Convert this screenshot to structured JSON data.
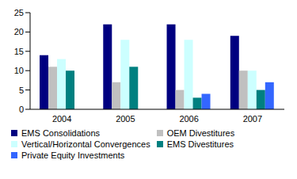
{
  "chart_data": {
    "type": "bar",
    "categories": [
      "2004",
      "2005",
      "2006",
      "2007"
    ],
    "series": [
      {
        "name": "EMS Consolidations",
        "color": "#000080",
        "values": [
          14,
          22,
          22,
          19
        ]
      },
      {
        "name": "OEM Divestitures",
        "color": "#c0c0c0",
        "values": [
          11,
          7,
          5,
          10
        ]
      },
      {
        "name": "Vertical/Horizontal Convergences",
        "color": "#ccffff",
        "values": [
          13,
          18,
          18,
          10
        ]
      },
      {
        "name": "EMS Divestitures",
        "color": "#008080",
        "values": [
          10,
          11,
          3,
          5
        ]
      },
      {
        "name": "Private Equity Investments",
        "color": "#3366ff",
        "values": [
          null,
          null,
          4,
          7
        ]
      }
    ],
    "ylim": [
      0,
      25
    ],
    "yticks": [
      0,
      5,
      10,
      15,
      20,
      25
    ],
    "grid": false,
    "legend": "bottom"
  }
}
